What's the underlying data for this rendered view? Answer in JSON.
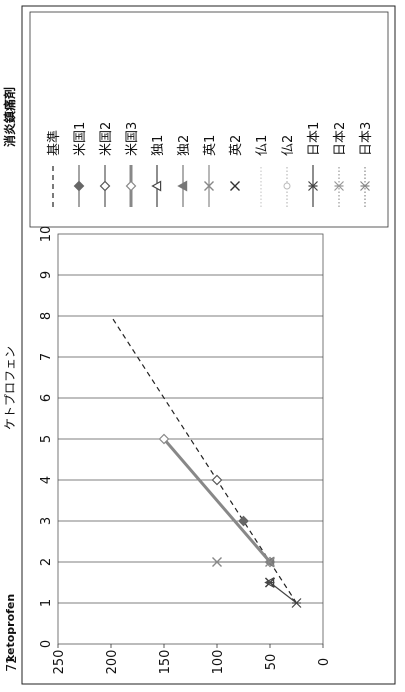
{
  "page": {
    "number": "72",
    "drug_en": "ketoprofen",
    "drug_ja": "ケトプロフェン",
    "category": "消炎鎮痛剤"
  },
  "chart_data": {
    "type": "scatter",
    "orientation": "rotated-90-ccw",
    "xlim": [
      0,
      250
    ],
    "ylim": [
      0,
      10
    ],
    "x_ticks": [
      "0",
      "50",
      "100",
      "150",
      "200",
      "250"
    ],
    "y_ticks": [
      "0",
      "1",
      "2",
      "3",
      "4",
      "5",
      "6",
      "7",
      "8",
      "9",
      "10"
    ],
    "grid": "horizontal",
    "legend_position": "right",
    "series": [
      {
        "name": "基準",
        "style": "dashed",
        "color": "#222222",
        "points": [
          [
            25,
            1
          ],
          [
            200,
            8
          ]
        ]
      },
      {
        "name": "米国1",
        "style": "solid",
        "marker": "filled-diamond",
        "color": "#666666",
        "points": [
          [
            75,
            3
          ]
        ]
      },
      {
        "name": "米国2",
        "style": "solid",
        "marker": "diamond",
        "color": "#555555",
        "points": [
          [
            100,
            4
          ]
        ]
      },
      {
        "name": "米国3",
        "style": "solid-thick",
        "marker": "diamond",
        "color": "#888888",
        "points": [
          [
            50,
            2
          ],
          [
            150,
            5
          ]
        ]
      },
      {
        "name": "独1",
        "style": "solid",
        "marker": "triangle",
        "color": "#444444",
        "points": [
          [
            50,
            1.5
          ]
        ]
      },
      {
        "name": "独2",
        "style": "solid",
        "marker": "filled-triangle",
        "color": "#777777",
        "points": [
          [
            50,
            2
          ]
        ]
      },
      {
        "name": "英1",
        "style": "solid",
        "marker": "x",
        "color": "#888888",
        "points": [
          [
            50,
            2
          ],
          [
            100,
            2
          ]
        ]
      },
      {
        "name": "英2",
        "style": "none",
        "marker": "x",
        "color": "#333333",
        "points": [
          [
            50,
            1.5
          ]
        ]
      },
      {
        "name": "仏1",
        "style": "dotted",
        "marker": "none",
        "color": "#cccccc",
        "points": []
      },
      {
        "name": "仏2",
        "style": "dotted",
        "marker": "circle",
        "color": "#bbbbbb",
        "points": []
      },
      {
        "name": "日本1",
        "style": "solid",
        "marker": "star",
        "color": "#444444",
        "points": [
          [
            25,
            1
          ],
          [
            50,
            1.5
          ]
        ]
      },
      {
        "name": "日本2",
        "style": "dotted",
        "marker": "star",
        "color": "#999999",
        "points": []
      },
      {
        "name": "日本3",
        "style": "dotted",
        "marker": "star",
        "color": "#888888",
        "points": []
      }
    ]
  }
}
